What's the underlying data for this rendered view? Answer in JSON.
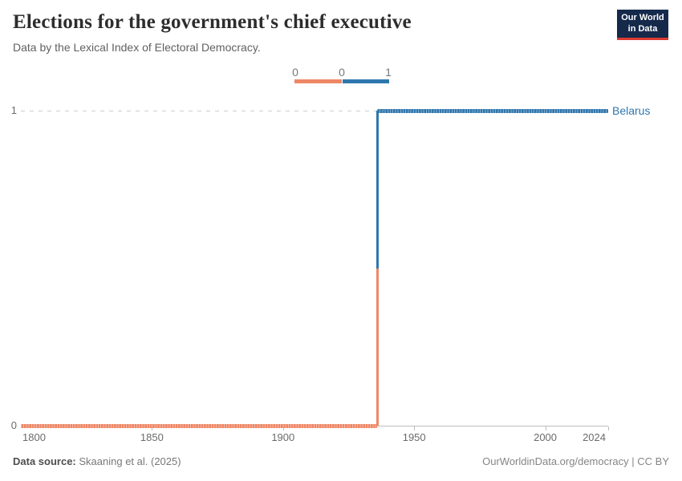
{
  "header": {
    "title": "Elections for the government's chief executive",
    "subtitle": "Data by the Lexical Index of Electoral Democracy.",
    "logo": {
      "line1": "Our World",
      "line2": "in Data"
    }
  },
  "legend": {
    "labels": [
      "0",
      "0",
      "1"
    ]
  },
  "chart_data": {
    "type": "line",
    "subtype": "step",
    "title": "Elections for the government's chief executive",
    "subtitle": "Data by the Lexical Index of Electoral Democracy.",
    "series": [
      {
        "name": "Belarus",
        "steps": [
          {
            "from": 1800,
            "to": 1936,
            "value": 0
          },
          {
            "from": 1936,
            "to": 2024,
            "value": 1
          }
        ]
      }
    ],
    "value_colors": {
      "0": "#EE8766",
      "1": "#2F77AD"
    },
    "entity_label_color": "#2F77AD",
    "x_ticks": [
      1800,
      1850,
      1900,
      1950,
      2000,
      2024
    ],
    "y_ticks": [
      0,
      1
    ],
    "xlim": [
      1800,
      2024
    ],
    "ylim": [
      0,
      1
    ],
    "gridlines_y": [
      1
    ],
    "legend_bins": [
      {
        "label_left": "0",
        "label_right": "0",
        "value": 0
      },
      {
        "label_left": "0",
        "label_right": "1",
        "value": 1
      }
    ],
    "xlabel": "",
    "ylabel": ""
  },
  "footer": {
    "source_label": "Data source:",
    "source_value": "Skaaning et al. (2025)",
    "attribution": "OurWorldinData.org/democracy | CC BY"
  }
}
